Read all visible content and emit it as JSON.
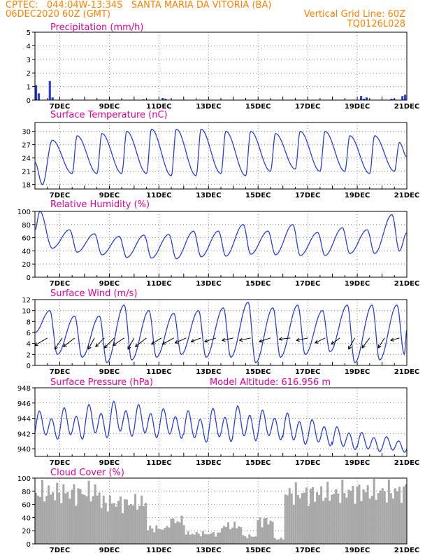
{
  "header": {
    "line1": "CPTEC:   044:04W-13:34S   SANTA MARIA DA VITORIA (BA)",
    "line2_left": "06DEC2020 60Z (GMT)",
    "line2_right": "Vertical Grid Line: 60Z",
    "line3_right": "TQ0126L028"
  },
  "colors": {
    "header": "#ff8000",
    "title": "#e0009a",
    "line": "#2a3fdc",
    "cloud": "#a8a8a8",
    "grid": "#777777"
  },
  "chart_data": [
    {
      "type": "bar",
      "title": "Precipitation (mm/h)",
      "ylim": [
        0,
        5
      ],
      "yticks": [
        "0",
        "1",
        "2",
        "3",
        "4",
        "5"
      ],
      "xticks": [
        "7DEC",
        "9DEC",
        "11DEC",
        "13DEC",
        "15DEC",
        "17DEC",
        "19DEC",
        "21DEC"
      ],
      "x_days": [
        6,
        21
      ],
      "values_per_3h": [
        1.1,
        0.5,
        0,
        0,
        0,
        1.4,
        0.2,
        0,
        0,
        0,
        0,
        0,
        0,
        0,
        0,
        0,
        0,
        0,
        0,
        0,
        0,
        0,
        0,
        0,
        0,
        0,
        0,
        0,
        0,
        0,
        0,
        0,
        0,
        0,
        0,
        0,
        0,
        0,
        0,
        0.05,
        0,
        0,
        0,
        0,
        0,
        0,
        0.15,
        0.1,
        0,
        0,
        0,
        0,
        0,
        0,
        0,
        0,
        0,
        0,
        0,
        0,
        0,
        0,
        0,
        0,
        0,
        0,
        0,
        0,
        0,
        0,
        0,
        0,
        0,
        0,
        0,
        0,
        0,
        0,
        0,
        0,
        0,
        0,
        0,
        0,
        0,
        0,
        0,
        0,
        0,
        0,
        0,
        0,
        0,
        0,
        0,
        0,
        0,
        0,
        0,
        0,
        0,
        0,
        0,
        0,
        0,
        0,
        0,
        0,
        0,
        0,
        0,
        0,
        0,
        0,
        0,
        0,
        0,
        0,
        0.3,
        0.1,
        0.2,
        0,
        0,
        0,
        0,
        0,
        0,
        0,
        0,
        0.1,
        0.1,
        0,
        0,
        0.3,
        0.4
      ]
    },
    {
      "type": "line",
      "title": "Surface Temperature (nC)",
      "ylim": [
        17,
        32
      ],
      "yticks": [
        "18",
        "21",
        "24",
        "27",
        "30"
      ],
      "xticks": [
        "7DEC",
        "9DEC",
        "11DEC",
        "13DEC",
        "15DEC",
        "17DEC",
        "19DEC",
        "21DEC"
      ],
      "min_days": [
        6.3,
        7.5,
        8.5,
        9.5,
        10.5,
        11.5,
        12.5,
        13.5,
        14.5,
        15.5,
        16.5,
        17.5,
        18.5,
        19.5,
        20.5
      ],
      "min_values": [
        18,
        20.5,
        20.5,
        20.5,
        20.5,
        20,
        20,
        20.5,
        20,
        21,
        21.5,
        21,
        21,
        20.5,
        21
      ],
      "max_days": [
        6.7,
        7.7,
        8.7,
        9.7,
        10.7,
        11.7,
        12.7,
        13.7,
        14.7,
        15.7,
        16.7,
        17.7,
        18.7,
        19.7,
        20.7
      ],
      "max_values": [
        28,
        29,
        29.5,
        30,
        30.5,
        30.5,
        30.5,
        30,
        30,
        29.5,
        30,
        30,
        29,
        29,
        27.5
      ]
    },
    {
      "type": "line",
      "title": "Relative Humidity (%)",
      "ylim": [
        0,
        100
      ],
      "yticks": [
        "0",
        "20",
        "40",
        "60",
        "80",
        "100"
      ],
      "xticks": [
        "7DEC",
        "9DEC",
        "11DEC",
        "13DEC",
        "15DEC",
        "17DEC",
        "19DEC",
        "21DEC"
      ],
      "min_days": [
        6.7,
        7.7,
        8.7,
        9.7,
        10.7,
        11.7,
        12.7,
        13.7,
        14.7,
        15.7,
        16.7,
        17.7,
        18.7,
        19.7,
        20.7
      ],
      "min_values": [
        44,
        38,
        34,
        30,
        29,
        28,
        31,
        32,
        35,
        34,
        33,
        33,
        36,
        36,
        40
      ],
      "max_days": [
        6.2,
        7.4,
        8.4,
        9.4,
        10.4,
        11.4,
        12.4,
        13.4,
        14.4,
        15.4,
        16.4,
        17.4,
        18.4,
        19.4,
        20.4
      ],
      "max_values": [
        100,
        72,
        66,
        62,
        64,
        65,
        70,
        70,
        80,
        70,
        80,
        68,
        75,
        72,
        95
      ]
    },
    {
      "type": "line",
      "title": "Surface Wind (m/s)",
      "ylim": [
        0,
        12
      ],
      "yticks": [
        "0",
        "2",
        "4",
        "6",
        "8",
        "10",
        "12"
      ],
      "xticks": [
        "7DEC",
        "9DEC",
        "11DEC",
        "13DEC",
        "15DEC",
        "17DEC",
        "19DEC",
        "21DEC"
      ],
      "max_days": [
        6.6,
        7.6,
        8.6,
        9.6,
        10.6,
        11.6,
        12.6,
        13.6,
        14.6,
        15.6,
        16.6,
        17.6,
        18.6,
        19.6,
        20.6
      ],
      "max_values": [
        10,
        9,
        9,
        11,
        10,
        9.5,
        10,
        10.5,
        11.5,
        10.5,
        11,
        10,
        11,
        11,
        11
      ],
      "min_days": [
        6.9,
        7.9,
        8.9,
        9.9,
        10.9,
        11.9,
        12.9,
        13.9,
        14.9,
        15.9,
        16.9,
        17.9,
        18.9,
        19.9,
        20.9
      ],
      "min_values": [
        2,
        1.5,
        0.5,
        1,
        1.5,
        2,
        1.5,
        1.5,
        0.5,
        1.5,
        2,
        2.5,
        0.5,
        1,
        2
      ],
      "wind_arrows": [
        {
          "day": 6.5,
          "u": -1,
          "v": -0.6
        },
        {
          "day": 7.1,
          "u": -0.6,
          "v": -0.9
        },
        {
          "day": 7.6,
          "u": -0.9,
          "v": -0.7
        },
        {
          "day": 8.4,
          "u": -0.5,
          "v": -0.9
        },
        {
          "day": 8.8,
          "u": -0.7,
          "v": -0.7
        },
        {
          "day": 9.2,
          "u": -0.8,
          "v": -0.8
        },
        {
          "day": 9.6,
          "u": -0.9,
          "v": -0.6
        },
        {
          "day": 10.0,
          "u": -0.5,
          "v": -0.9
        },
        {
          "day": 10.5,
          "u": -0.9,
          "v": -0.7
        },
        {
          "day": 11.1,
          "u": -0.8,
          "v": -0.5
        },
        {
          "day": 11.6,
          "u": -0.9,
          "v": -0.5
        },
        {
          "day": 12.1,
          "u": -0.9,
          "v": -0.4
        },
        {
          "day": 12.7,
          "u": -0.8,
          "v": -0.3
        },
        {
          "day": 13.3,
          "u": -0.9,
          "v": -0.3
        },
        {
          "day": 14.0,
          "u": -0.9,
          "v": -0.2
        },
        {
          "day": 14.7,
          "u": -0.9,
          "v": -0.2
        },
        {
          "day": 15.5,
          "u": -0.9,
          "v": -0.3
        },
        {
          "day": 16.3,
          "u": -0.9,
          "v": -0.1
        },
        {
          "day": 17.0,
          "u": -0.9,
          "v": -0.2
        },
        {
          "day": 17.7,
          "u": -0.8,
          "v": -0.4
        },
        {
          "day": 18.3,
          "u": -0.7,
          "v": -0.5
        },
        {
          "day": 18.9,
          "u": -0.5,
          "v": -0.9
        },
        {
          "day": 19.5,
          "u": -0.6,
          "v": -0.8
        },
        {
          "day": 20.1,
          "u": -0.5,
          "v": -0.8
        },
        {
          "day": 20.7,
          "u": -0.7,
          "v": -0.2
        }
      ]
    },
    {
      "type": "line",
      "title": "Surface Pressure (hPa)",
      "annotation": "Model Altitude: 616.956 m",
      "ylim": [
        939,
        948
      ],
      "yticks": [
        "940",
        "942",
        "944",
        "946",
        "948"
      ],
      "xticks": [
        "7DEC",
        "9DEC",
        "11DEC",
        "13DEC",
        "15DEC",
        "17DEC",
        "19DEC",
        "21DEC"
      ],
      "daily_mean": [
        943,
        943.2,
        943.5,
        943.8,
        943.5,
        943.2,
        942.8,
        943.0,
        943.2,
        943.0,
        942.5,
        942.0,
        941.3,
        940.8,
        940.5
      ],
      "amplitude": [
        1.6,
        1.8,
        1.9,
        2.0,
        1.9,
        1.7,
        1.8,
        1.9,
        2.0,
        1.7,
        1.8,
        1.5,
        1.3,
        1.1,
        0.9
      ]
    },
    {
      "type": "bar",
      "title": "Cloud Cover (%)",
      "ylim": [
        0,
        100
      ],
      "yticks": [
        "0",
        "20",
        "40",
        "60",
        "80",
        "100"
      ],
      "xticks": [
        "7DEC",
        "9DEC",
        "11DEC",
        "13DEC",
        "15DEC",
        "17DEC",
        "19DEC",
        "21DEC"
      ],
      "segments": [
        {
          "from": 6.0,
          "to": 8.6,
          "level": 90
        },
        {
          "from": 8.6,
          "to": 10.5,
          "level": 70
        },
        {
          "from": 10.5,
          "to": 11.3,
          "level": 30
        },
        {
          "from": 11.3,
          "to": 12.0,
          "level": 45
        },
        {
          "from": 12.0,
          "to": 13.5,
          "level": 20
        },
        {
          "from": 13.5,
          "to": 14.3,
          "level": 35
        },
        {
          "from": 14.3,
          "to": 14.9,
          "level": 15
        },
        {
          "from": 14.9,
          "to": 15.6,
          "level": 45
        },
        {
          "from": 15.6,
          "to": 16.0,
          "level": 10
        },
        {
          "from": 16.0,
          "to": 18.2,
          "level": 88
        },
        {
          "from": 18.2,
          "to": 21.0,
          "level": 92
        }
      ]
    }
  ]
}
